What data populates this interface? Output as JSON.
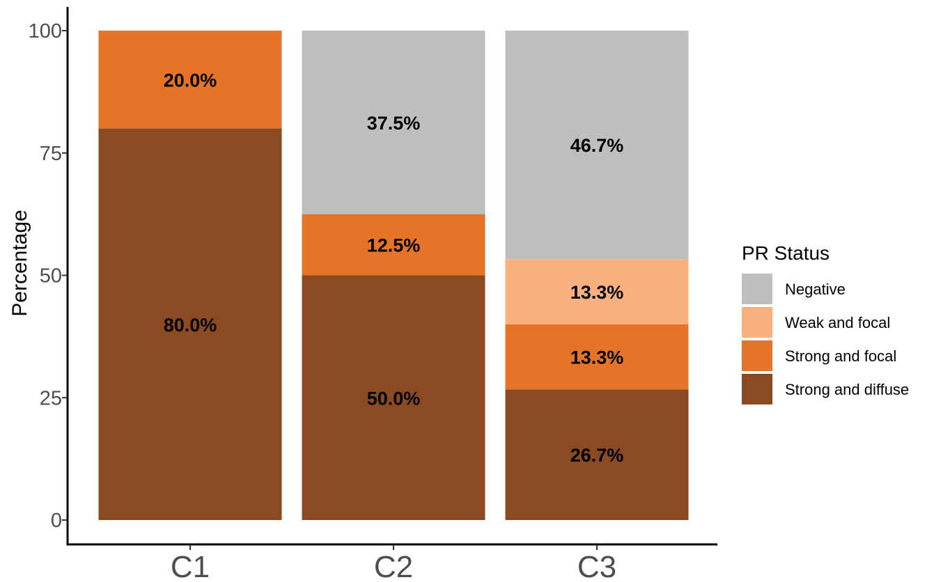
{
  "chart_data": {
    "type": "bar",
    "stacked": true,
    "categories": [
      "C1",
      "C2",
      "C3"
    ],
    "ylabel": "Percentage",
    "ylim": [
      0,
      100
    ],
    "yticks": [
      "0",
      "25",
      "50",
      "75",
      "100"
    ],
    "legend": {
      "title": "PR Status",
      "placement": "right",
      "entries": [
        "Negative",
        "Weak and focal",
        "Strong and focal",
        "Strong and diffuse"
      ]
    },
    "series": [
      {
        "name": "Strong and diffuse",
        "color": "#8B4A22",
        "values": [
          80.0,
          50.0,
          26.7
        ],
        "labels": [
          "80.0%",
          "50.0%",
          "26.7%"
        ]
      },
      {
        "name": "Strong and focal",
        "color": "#E57428",
        "values": [
          20.0,
          12.5,
          13.3
        ],
        "labels": [
          "20.0%",
          "12.5%",
          "13.3%"
        ]
      },
      {
        "name": "Weak and focal",
        "color": "#F9AF7E",
        "values": [
          0,
          0,
          13.3
        ],
        "labels": [
          "",
          "",
          "13.3%"
        ]
      },
      {
        "name": "Negative",
        "color": "#BEBEBE",
        "values": [
          0,
          37.5,
          46.7
        ],
        "labels": [
          "",
          "37.5%",
          "46.7%"
        ]
      }
    ],
    "grid": false
  }
}
